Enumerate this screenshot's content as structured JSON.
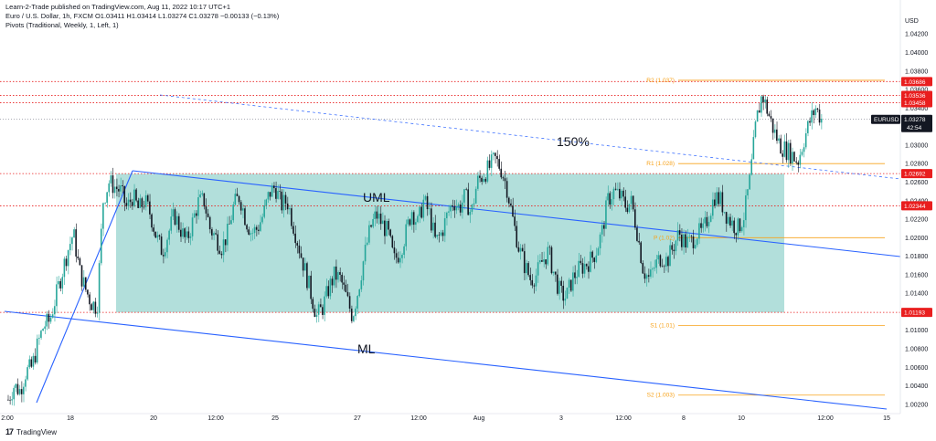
{
  "header": {
    "published": "Learn-2-Trade published on TradingView.com, Aug 11, 2022 10:17 UTC+1",
    "symbol_line": "Euro / U.S. Dollar, 1h, FXCM  O1.03411  H1.03414  L1.03274  C1.03278  −0.00133 (−0.13%)",
    "indicator_line": "Pivots (Traditional, Weekly, 1, Left, 1)"
  },
  "footer": {
    "brand": "TradingView",
    "logo": "17"
  },
  "chart_data": {
    "type": "candlestick",
    "currency": "USD",
    "ylim": [
      1.001,
      1.0435
    ],
    "y_ticks": [
      1.002,
      1.004,
      1.006,
      1.008,
      1.01,
      1.012,
      1.014,
      1.016,
      1.018,
      1.02,
      1.022,
      1.024,
      1.026,
      1.028,
      1.03,
      1.032,
      1.034,
      1.036,
      1.038,
      1.04,
      1.042
    ],
    "y_tick_labels": [
      "1.00200",
      "1.00400",
      "1.00600",
      "1.00800",
      "1.01000",
      "1.01200",
      "1.01400",
      "1.01600",
      "1.01800",
      "1.02000",
      "1.02200",
      "1.02400",
      "1.02600",
      "1.02800",
      "1.03000",
      "1.03200",
      "1.03400",
      "1.03600",
      "1.03800",
      "1.04000",
      "1.04200"
    ],
    "x_tick_labels": [
      "2:00",
      "18",
      "20",
      "12:00",
      "25",
      "27",
      "12:00",
      "Aug",
      "3",
      "12:00",
      "8",
      "10",
      "12:00",
      "15"
    ],
    "series": [
      {
        "name": "EURUSD",
        "close_path": [
          1.0025,
          1.004,
          1.0035,
          1.0055,
          1.006,
          1.0085,
          1.0105,
          1.011,
          1.0135,
          1.016,
          1.0185,
          1.0205,
          1.0165,
          1.0145,
          1.013,
          1.0125,
          1.024,
          1.026,
          1.0255,
          1.025,
          1.0232,
          1.0245,
          1.023,
          1.024,
          1.0225,
          1.02,
          1.0185,
          1.0205,
          1.0225,
          1.021,
          1.0195,
          1.0215,
          1.0238,
          1.024,
          1.021,
          1.02,
          1.019,
          1.0205,
          1.0235,
          1.0245,
          1.022,
          1.0205,
          1.021,
          1.0225,
          1.0248,
          1.0255,
          1.0235,
          1.024,
          1.0215,
          1.019,
          1.0165,
          1.014,
          1.0115,
          1.0125,
          1.0145,
          1.016,
          1.0155,
          1.0135,
          1.0115,
          1.0145,
          1.018,
          1.021,
          1.0225,
          1.0215,
          1.0205,
          1.0175,
          1.0185,
          1.0205,
          1.023,
          1.0215,
          1.024,
          1.0225,
          1.0195,
          1.0205,
          1.0225,
          1.024,
          1.0232,
          1.0245,
          1.0225,
          1.026,
          1.0268,
          1.0275,
          1.0285,
          1.0275,
          1.0255,
          1.022,
          1.019,
          1.017,
          1.0155,
          1.016,
          1.0175,
          1.0185,
          1.016,
          1.014,
          1.0135,
          1.0155,
          1.0165,
          1.017,
          1.0175,
          1.0185,
          1.0205,
          1.024,
          1.025,
          1.0245,
          1.0235,
          1.0238,
          1.0205,
          1.0165,
          1.0155,
          1.017,
          1.018,
          1.0175,
          1.019,
          1.0205,
          1.0195,
          1.0195,
          1.0205,
          1.0205,
          1.0225,
          1.0245,
          1.024,
          1.0225,
          1.0215,
          1.021,
          1.0225,
          1.0265,
          1.0325,
          1.0355,
          1.0335,
          1.0315,
          1.03,
          1.0295,
          1.029,
          1.0282,
          1.0305,
          1.0325,
          1.034,
          1.0328
        ],
        "last_value": 1.03278
      }
    ],
    "current_price": {
      "label": "EURUSD",
      "value": "1.03278",
      "countdown": "42:54"
    },
    "horizontal_levels": [
      {
        "value": 1.03686,
        "label": "1.03686"
      },
      {
        "value": 1.03536,
        "label": "1.03536"
      },
      {
        "value": 1.03458,
        "label": "1.03458"
      },
      {
        "value": 1.02692,
        "label": "1.02692"
      },
      {
        "value": 1.02344,
        "label": "1.02344"
      },
      {
        "value": 1.01193,
        "label": "1.01193"
      }
    ],
    "pivot_levels": [
      {
        "name": "R2 (1.037)",
        "value": 1.037
      },
      {
        "name": "R1 (1.028)",
        "value": 1.028
      },
      {
        "name": "P (1.02)",
        "value": 1.02
      },
      {
        "name": "S1 (1.01)",
        "value": 1.0105
      },
      {
        "name": "S2 (1.003)",
        "value": 1.003
      }
    ],
    "annotations": {
      "uml": "UML",
      "ml": "ML",
      "fib": "150%"
    },
    "colors": {
      "up": "#26a69a",
      "down": "#131722",
      "box_fill": "#b2dfdb",
      "trendline": "#2962ff",
      "level": "#e91e1e",
      "pivot": "#f7a21b",
      "price_tag": "#131722"
    }
  }
}
